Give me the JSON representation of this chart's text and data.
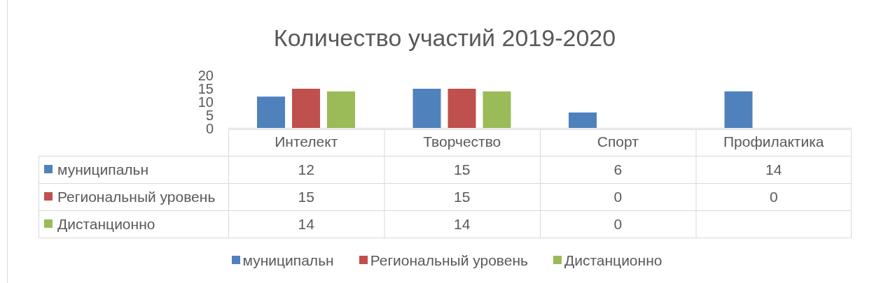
{
  "chart_data": {
    "type": "bar",
    "title": "Количество участий 2019-2020",
    "categories": [
      "Интелект",
      "Творчество",
      "Спорт",
      "Профилактика"
    ],
    "series": [
      {
        "name": "муниципальн",
        "color": "#4f81bd",
        "values": [
          12,
          15,
          6,
          14
        ]
      },
      {
        "name": "Региональный уровень",
        "color": "#c0504d",
        "values": [
          15,
          15,
          0,
          0
        ]
      },
      {
        "name": "Дистанционно",
        "color": "#9bbb59",
        "values": [
          14,
          14,
          0,
          null
        ]
      }
    ],
    "ylim": [
      0,
      20
    ],
    "yticks": [
      0,
      5,
      10,
      15,
      20
    ],
    "legend": "bottom",
    "data_labels": true
  }
}
